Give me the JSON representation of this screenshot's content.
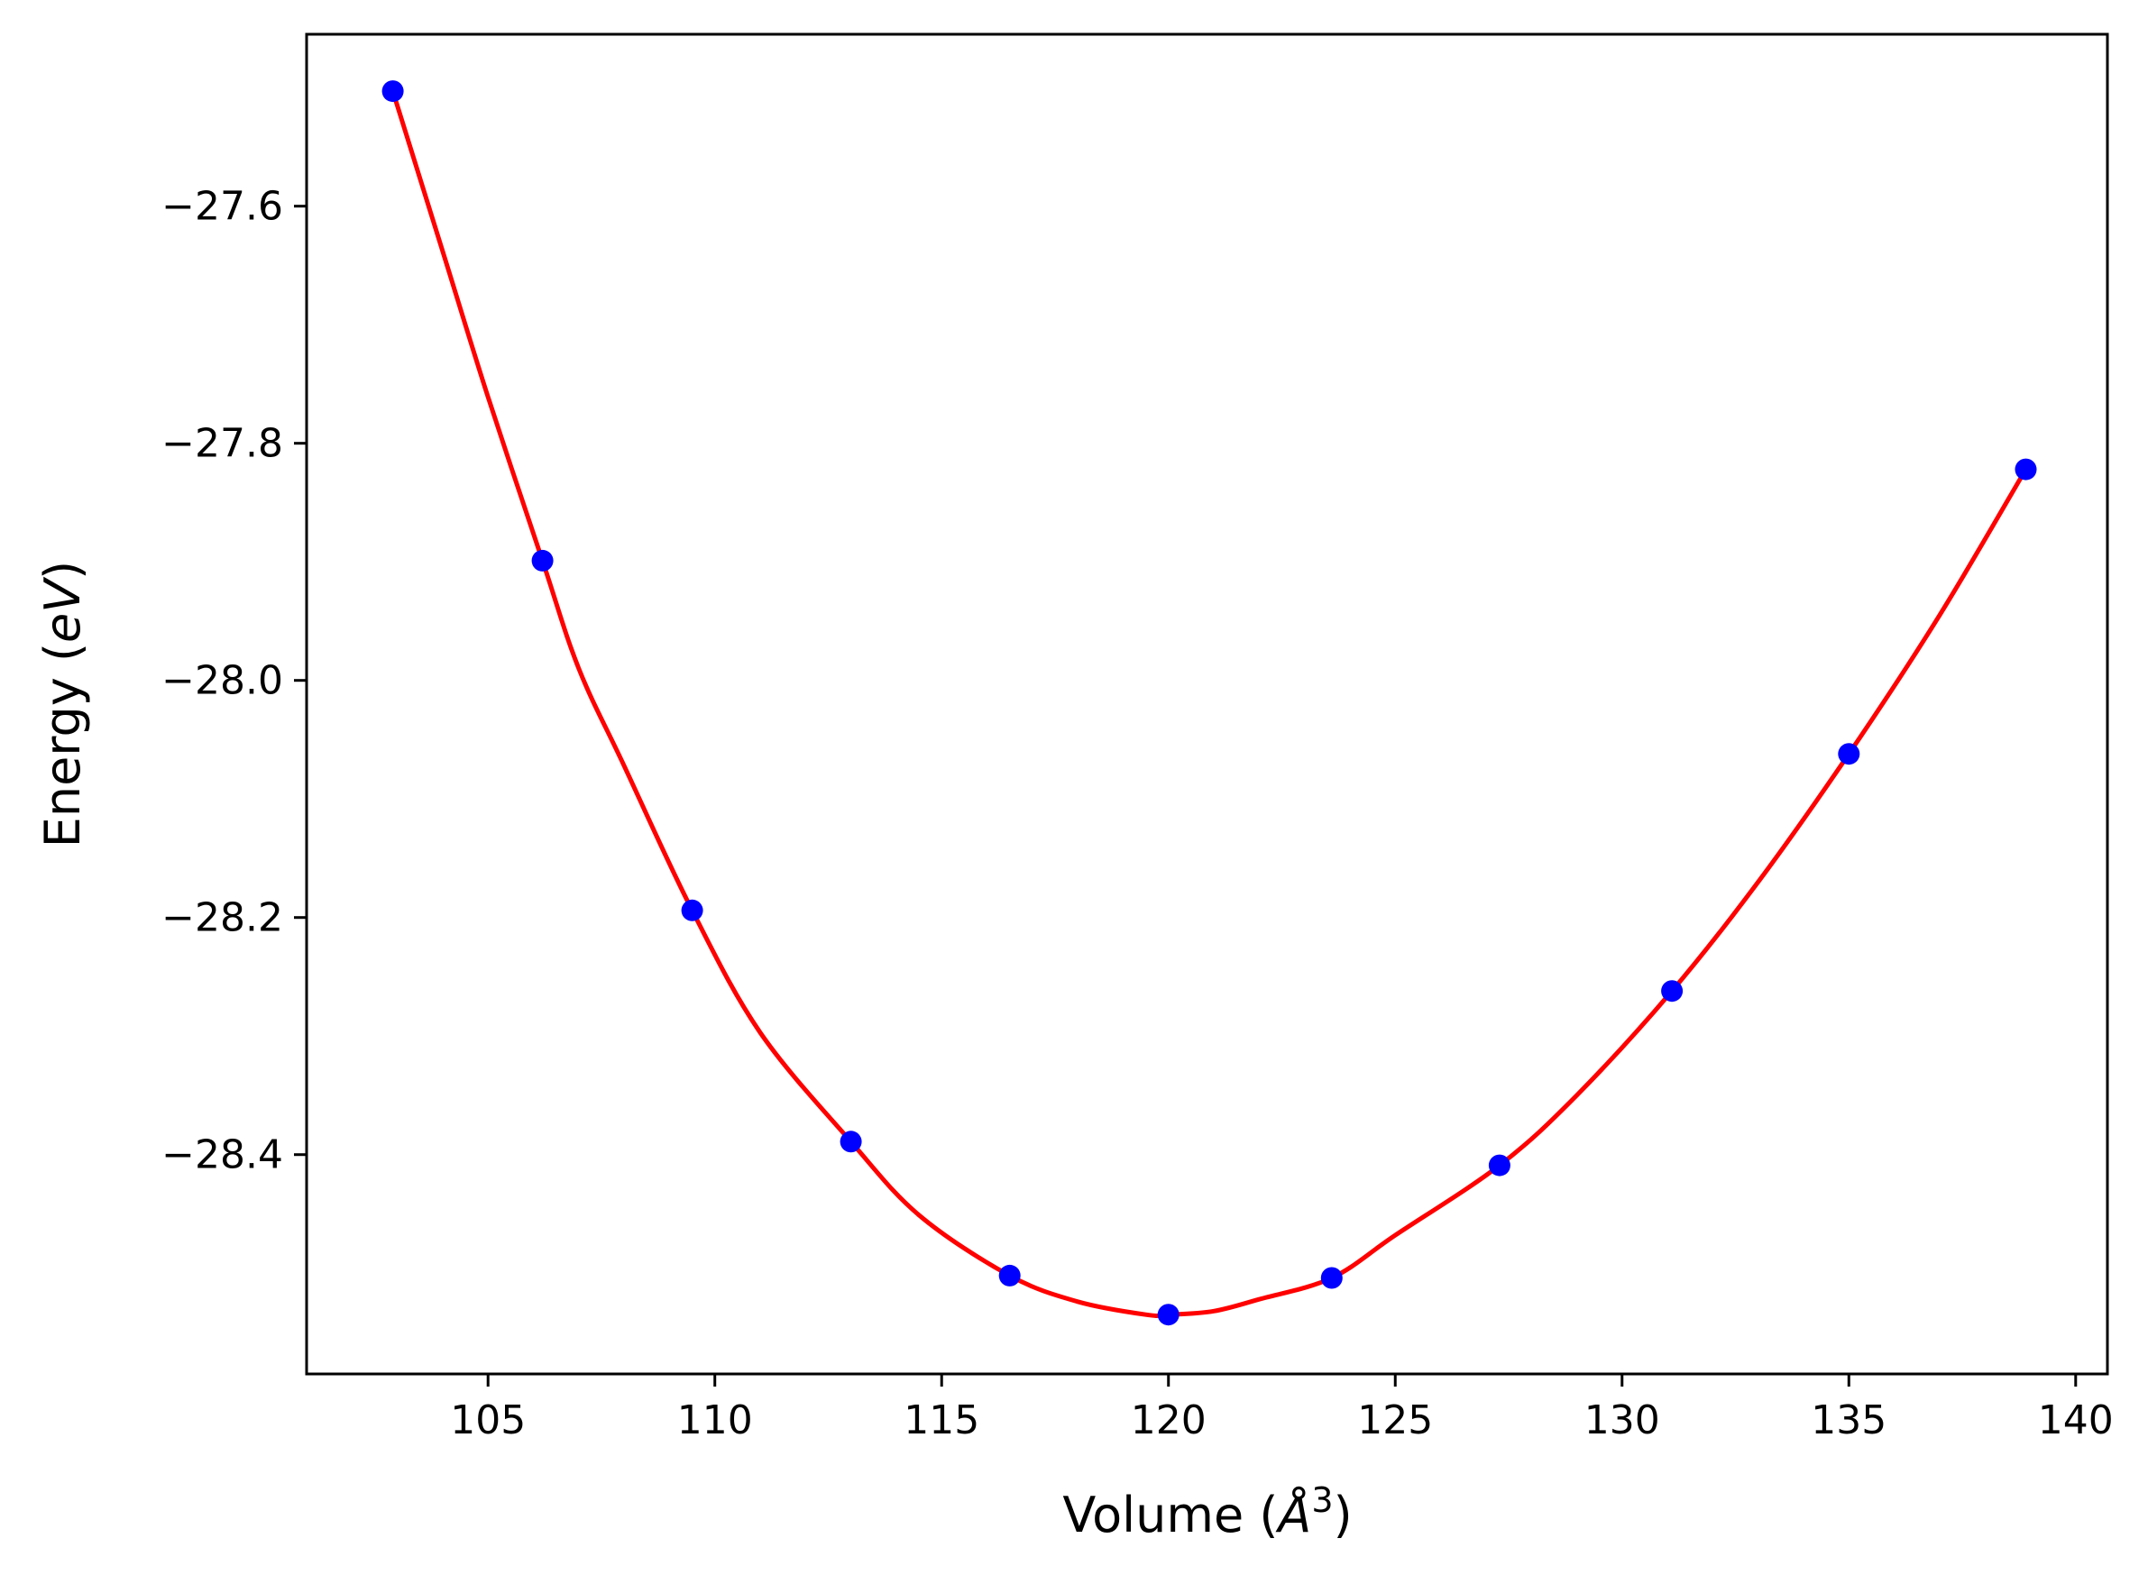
{
  "chart_data": {
    "type": "scatter",
    "title": "",
    "xlabel": {
      "prefix": "Volume (",
      "symbol": "Å",
      "exponent": "3",
      "suffix": ")"
    },
    "ylabel": {
      "prefix": "Energy (",
      "symbol": "eV",
      "suffix": ")"
    },
    "xlim": [
      101.0,
      140.7
    ],
    "ylim": [
      -28.585,
      -27.455
    ],
    "xticks": [
      105,
      110,
      115,
      120,
      125,
      130,
      135,
      140
    ],
    "yticks": [
      -27.6,
      -27.8,
      -28.0,
      -28.2,
      -28.4
    ],
    "grid": false,
    "series": [
      {
        "kind": "points",
        "color": "#0000ff",
        "x": [
          102.9,
          106.2,
          109.5,
          113.0,
          116.5,
          120.0,
          123.6,
          127.3,
          131.1,
          135.0,
          138.9
        ],
        "y": [
          -27.503,
          -27.899,
          -28.194,
          -28.389,
          -28.502,
          -28.535,
          -28.504,
          -28.409,
          -28.262,
          -28.062,
          -27.822
        ]
      },
      {
        "kind": "fit-line",
        "color": "#ff0000",
        "x": [
          102.9,
          104.0,
          105.0,
          106.2,
          107.0,
          108.0,
          109.5,
          111.0,
          113.0,
          114.5,
          116.5,
          118.0,
          119.5,
          120.0,
          121.0,
          122.0,
          123.6,
          125.0,
          127.3,
          129.0,
          131.1,
          133.0,
          135.0,
          137.0,
          138.9
        ],
        "y": [
          -27.503,
          -27.638,
          -27.761,
          -27.899,
          -27.99,
          -28.072,
          -28.194,
          -28.297,
          -28.389,
          -28.451,
          -28.502,
          -28.524,
          -28.535,
          -28.535,
          -28.532,
          -28.522,
          -28.504,
          -28.468,
          -28.409,
          -28.35,
          -28.262,
          -28.17,
          -28.062,
          -27.945,
          -27.822
        ]
      }
    ]
  }
}
